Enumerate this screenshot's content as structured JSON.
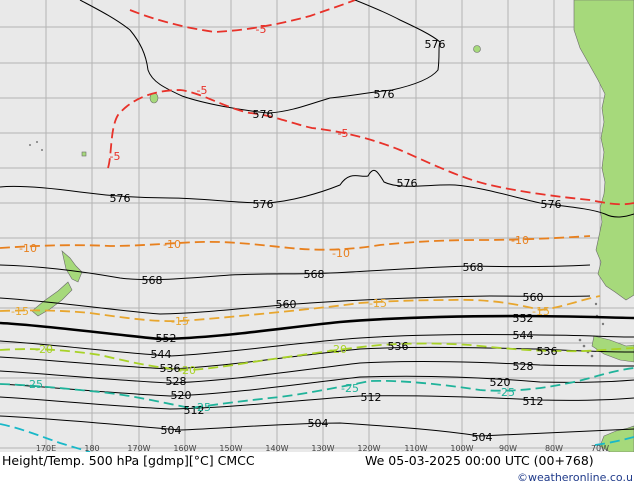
{
  "title": "Height/Temp. 500 hPa [gdmp][°C] CMCC",
  "date": "We 05-03-2025 00:00 UTC (00+768)",
  "credit": "©weatheronline.co.uk",
  "longitude_labels": [
    "170E",
    "180",
    "170W",
    "160W",
    "150W",
    "140W",
    "130W",
    "120W",
    "110W",
    "100W",
    "90W",
    "80W",
    "70W"
  ],
  "height_labels": [
    "576",
    "576",
    "576",
    "576",
    "576",
    "576",
    "576",
    "568",
    "568",
    "568",
    "560",
    "560",
    "552",
    "552",
    "544",
    "544",
    "536",
    "536",
    "536",
    "528",
    "528",
    "520",
    "520",
    "512",
    "512",
    "512",
    "504",
    "504",
    "504"
  ],
  "temp_labels": [
    "-5",
    "-5",
    "-5",
    "-5",
    "-10",
    "-10",
    "-10",
    "-10",
    "-15",
    "-15",
    "-15",
    "-15",
    "-20",
    "-20",
    "-20",
    "-25",
    "-25",
    "-25",
    "-25"
  ],
  "colors": {
    "ocean": "#e9e9e9",
    "land": "#a6d97b",
    "grid": "#b4b4b4",
    "height_contour": "#000000",
    "temp_minus5": "#e8322a",
    "temp_minus10": "#e8801e",
    "temp_minus15": "#e8a62e",
    "temp_minus20": "#a8d227",
    "temp_minus25": "#1fb39a",
    "temp_minus30": "#19b8c8"
  }
}
